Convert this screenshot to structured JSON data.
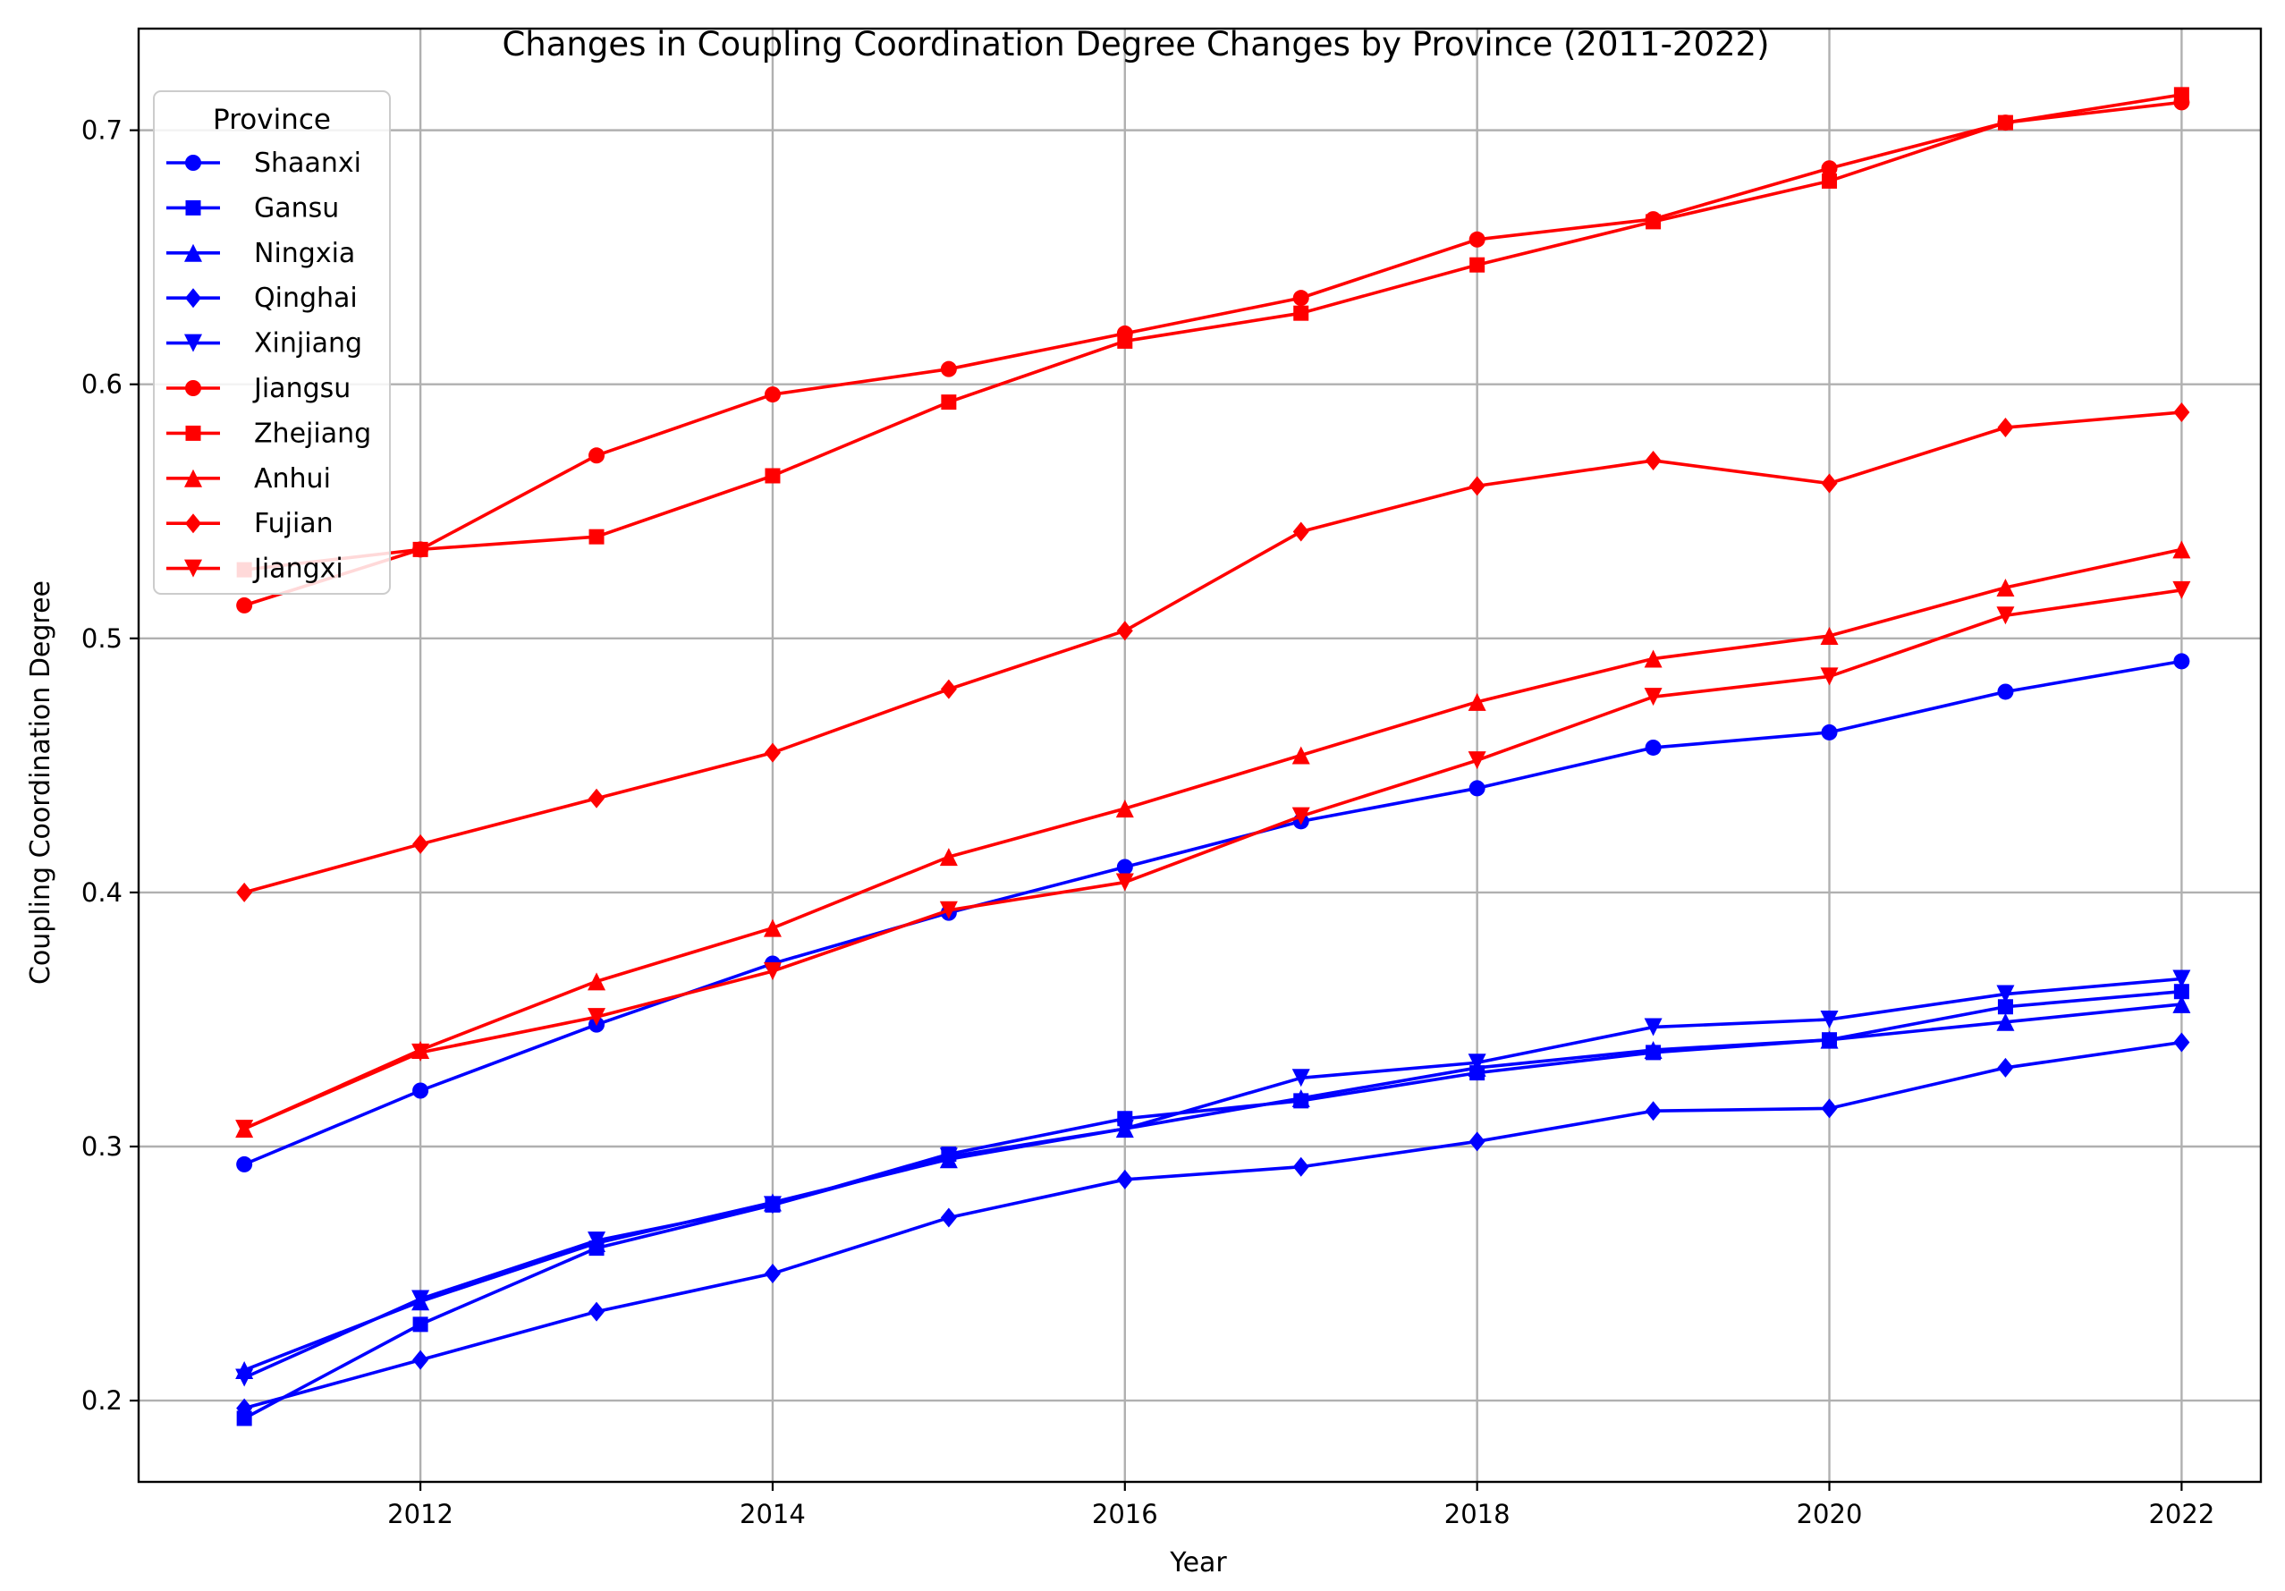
{
  "chart_data": {
    "type": "line",
    "title": "Changes in Coupling Coordination Degree Changes by Province (2011-2022)",
    "xlabel": "Year",
    "ylabel": "Coupling Coordination Degree",
    "x": [
      2011,
      2012,
      2013,
      2014,
      2015,
      2016,
      2017,
      2018,
      2019,
      2020,
      2021,
      2022
    ],
    "xlim": [
      2010.4,
      2022.45
    ],
    "ylim": [
      0.168,
      0.74
    ],
    "x_ticks": [
      2012,
      2014,
      2016,
      2018,
      2020,
      2022
    ],
    "x_tick_labels": [
      "2012",
      "2014",
      "2016",
      "2018",
      "2020",
      "2022"
    ],
    "y_ticks": [
      0.2,
      0.3,
      0.4,
      0.5,
      0.6,
      0.7
    ],
    "y_tick_labels": [
      "0.2",
      "0.3",
      "0.4",
      "0.5",
      "0.6",
      "0.7"
    ],
    "grid": true,
    "legend": {
      "title": "Province",
      "position": "top-left"
    },
    "series": [
      {
        "name": "Shaanxi",
        "color": "#0000ff",
        "marker": "circle",
        "values": [
          0.293,
          0.322,
          0.348,
          0.372,
          0.392,
          0.41,
          0.428,
          0.441,
          0.457,
          0.463,
          0.479,
          0.491
        ]
      },
      {
        "name": "Gansu",
        "color": "#0000ff",
        "marker": "square",
        "values": [
          0.193,
          0.23,
          0.26,
          0.277,
          0.297,
          0.311,
          0.318,
          0.329,
          0.337,
          0.342,
          0.355,
          0.361
        ]
      },
      {
        "name": "Ningxia",
        "color": "#0000ff",
        "marker": "triangle-up",
        "values": [
          0.212,
          0.239,
          0.262,
          0.278,
          0.295,
          0.307,
          0.319,
          0.331,
          0.338,
          0.342,
          0.349,
          0.356
        ]
      },
      {
        "name": "Qinghai",
        "color": "#0000ff",
        "marker": "diamond",
        "values": [
          0.197,
          0.216,
          0.235,
          0.25,
          0.272,
          0.287,
          0.292,
          0.302,
          0.314,
          0.315,
          0.331,
          0.341
        ]
      },
      {
        "name": "Xinjiang",
        "color": "#0000ff",
        "marker": "triangle-down",
        "values": [
          0.209,
          0.24,
          0.263,
          0.277,
          0.296,
          0.307,
          0.327,
          0.333,
          0.347,
          0.35,
          0.36,
          0.366
        ]
      },
      {
        "name": "Jiangsu",
        "color": "#ff0000",
        "marker": "circle",
        "values": [
          0.513,
          0.535,
          0.572,
          0.596,
          0.606,
          0.62,
          0.634,
          0.657,
          0.665,
          0.685,
          0.703,
          0.711
        ]
      },
      {
        "name": "Zhejiang",
        "color": "#ff0000",
        "marker": "square",
        "values": [
          0.527,
          0.535,
          0.54,
          0.564,
          0.593,
          0.617,
          0.628,
          0.647,
          0.664,
          0.68,
          0.703,
          0.714
        ]
      },
      {
        "name": "Anhui",
        "color": "#ff0000",
        "marker": "triangle-up",
        "values": [
          0.307,
          0.338,
          0.365,
          0.386,
          0.414,
          0.433,
          0.454,
          0.475,
          0.492,
          0.501,
          0.52,
          0.535
        ]
      },
      {
        "name": "Fujian",
        "color": "#ff0000",
        "marker": "diamond",
        "values": [
          0.4,
          0.419,
          0.437,
          0.455,
          0.48,
          0.503,
          0.542,
          0.56,
          0.57,
          0.561,
          0.583,
          0.589
        ]
      },
      {
        "name": "Jiangxi",
        "color": "#ff0000",
        "marker": "triangle-down",
        "values": [
          0.307,
          0.337,
          0.351,
          0.369,
          0.393,
          0.404,
          0.43,
          0.452,
          0.477,
          0.485,
          0.509,
          0.519
        ]
      }
    ]
  }
}
